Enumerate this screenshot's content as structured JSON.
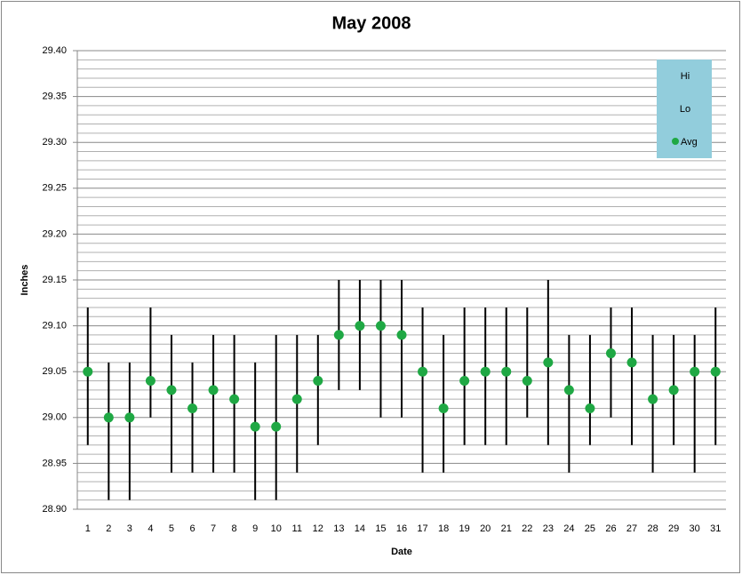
{
  "chart_data": {
    "type": "hi-lo-avg",
    "title": "May 2008",
    "x_label": "Date",
    "y_label": "Inches",
    "categories": [
      "1",
      "2",
      "3",
      "4",
      "5",
      "6",
      "7",
      "8",
      "9",
      "10",
      "11",
      "12",
      "13",
      "14",
      "15",
      "16",
      "17",
      "18",
      "19",
      "20",
      "21",
      "22",
      "23",
      "24",
      "25",
      "26",
      "27",
      "28",
      "29",
      "30",
      "31"
    ],
    "series": [
      {
        "name": "Hi",
        "color": "#000000",
        "values": [
          29.12,
          29.06,
          29.06,
          29.12,
          29.09,
          29.06,
          29.09,
          29.09,
          29.06,
          29.09,
          29.09,
          29.09,
          29.15,
          29.15,
          29.15,
          29.15,
          29.12,
          29.09,
          29.12,
          29.12,
          29.12,
          29.12,
          29.15,
          29.09,
          29.09,
          29.12,
          29.12,
          29.09,
          29.09,
          29.09,
          29.12
        ]
      },
      {
        "name": "Lo",
        "color": "#000000",
        "values": [
          28.97,
          28.91,
          28.91,
          29.0,
          28.94,
          28.94,
          28.94,
          28.94,
          28.91,
          28.91,
          28.94,
          28.97,
          29.03,
          29.03,
          29.0,
          29.0,
          28.94,
          28.94,
          28.97,
          28.97,
          28.97,
          29.0,
          28.97,
          28.94,
          28.97,
          29.0,
          28.97,
          28.94,
          28.97,
          28.94,
          28.97
        ]
      },
      {
        "name": "Avg",
        "color": "#1fa844",
        "values": [
          29.05,
          29.0,
          29.0,
          29.04,
          29.03,
          29.01,
          29.03,
          29.02,
          28.99,
          28.99,
          29.02,
          29.04,
          29.09,
          29.1,
          29.1,
          29.09,
          29.05,
          29.01,
          29.04,
          29.05,
          29.05,
          29.04,
          29.06,
          29.03,
          29.01,
          29.07,
          29.06,
          29.02,
          29.03,
          29.05,
          29.05
        ]
      }
    ],
    "ylim": [
      28.9,
      29.4
    ],
    "yticks": [
      {
        "value": 28.9,
        "label": "28.90"
      },
      {
        "value": 28.95,
        "label": "28.95"
      },
      {
        "value": 29.0,
        "label": "29.00"
      },
      {
        "value": 29.05,
        "label": "29.05"
      },
      {
        "value": 29.1,
        "label": "29.10"
      },
      {
        "value": 29.15,
        "label": "29.15"
      },
      {
        "value": 29.2,
        "label": "29.20"
      },
      {
        "value": 29.25,
        "label": "29.25"
      },
      {
        "value": 29.3,
        "label": "29.30"
      },
      {
        "value": 29.35,
        "label": "29.35"
      },
      {
        "value": 29.4,
        "label": "29.40"
      }
    ],
    "y_minor_ticks": [
      28.91,
      28.92,
      28.93,
      28.94,
      28.96,
      28.97,
      28.98,
      28.99,
      29.01,
      29.02,
      29.03,
      29.04,
      29.06,
      29.07,
      29.08,
      29.09,
      29.11,
      29.12,
      29.13,
      29.14,
      29.16,
      29.17,
      29.18,
      29.19,
      29.21,
      29.22,
      29.23,
      29.24,
      29.26,
      29.27,
      29.28,
      29.29,
      29.31,
      29.32,
      29.33,
      29.34,
      29.36,
      29.37,
      29.38,
      29.39
    ],
    "grid": true,
    "legend": "top-right",
    "legend_color": "#92cddc"
  }
}
